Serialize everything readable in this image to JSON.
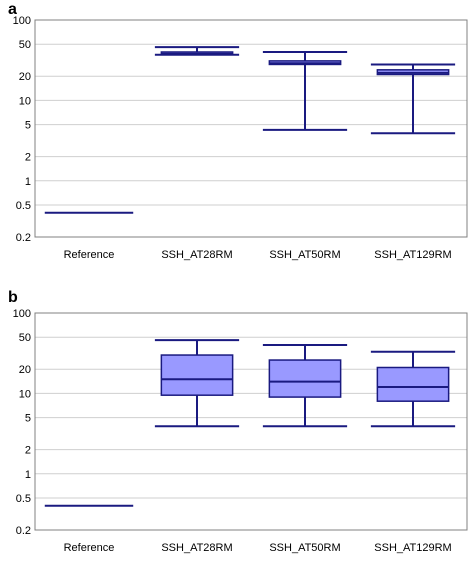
{
  "chart_data": [
    {
      "panel": "a",
      "type": "box",
      "ylog": true,
      "ylim": [
        0.2,
        100
      ],
      "yticks": [
        "0.2",
        "0.5",
        "1",
        "2",
        "5",
        "10",
        "20",
        "50",
        "100"
      ],
      "grid": true,
      "categories": [
        "Reference",
        "SSH_AT28RM",
        "SSH_AT50RM",
        "SSH_AT129RM"
      ],
      "boxes": [
        {
          "min": 0.4,
          "q1": 0.4,
          "median": 0.4,
          "q3": 0.4,
          "max": 0.4
        },
        {
          "min": 37,
          "q1": 37,
          "median": 38,
          "q3": 40,
          "max": 46
        },
        {
          "min": 4.3,
          "q1": 28,
          "median": 29,
          "q3": 31,
          "max": 40
        },
        {
          "min": 3.9,
          "q1": 21,
          "median": 22,
          "q3": 24,
          "max": 28
        }
      ],
      "colors": {
        "line": "#1a1a80",
        "box_fill": "#9999ff",
        "grid": "#cfcfcf",
        "frame": "#808080"
      }
    },
    {
      "panel": "b",
      "type": "box",
      "ylog": true,
      "ylim": [
        0.2,
        100
      ],
      "yticks": [
        "0.2",
        "0.5",
        "1",
        "2",
        "5",
        "10",
        "20",
        "50",
        "100"
      ],
      "grid": true,
      "categories": [
        "Reference",
        "SSH_AT28RM",
        "SSH_AT50RM",
        "SSH_AT129RM"
      ],
      "boxes": [
        {
          "min": 0.4,
          "q1": 0.4,
          "median": 0.4,
          "q3": 0.4,
          "max": 0.4
        },
        {
          "min": 3.9,
          "q1": 9.5,
          "median": 15,
          "q3": 30,
          "max": 46
        },
        {
          "min": 3.9,
          "q1": 9,
          "median": 14,
          "q3": 26,
          "max": 40
        },
        {
          "min": 3.9,
          "q1": 8,
          "median": 12,
          "q3": 21,
          "max": 33
        }
      ],
      "colors": {
        "line": "#1a1a80",
        "box_fill": "#9999ff",
        "grid": "#cfcfcf",
        "frame": "#808080"
      }
    }
  ]
}
